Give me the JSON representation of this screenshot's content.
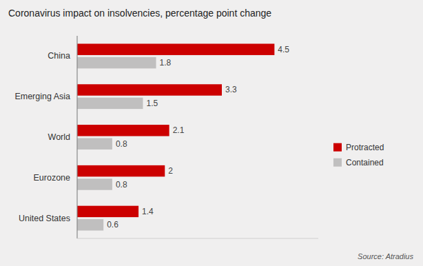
{
  "chart_data": {
    "type": "bar",
    "orientation": "horizontal",
    "title": "Coronavirus impact on insolvencies, percentage point change",
    "categories": [
      "United States",
      "Eurozone",
      "World",
      "Emerging Asia",
      "China"
    ],
    "series": [
      {
        "name": "Protracted",
        "color": "#cc0000",
        "values": [
          1.4,
          2.0,
          2.1,
          3.3,
          4.5
        ]
      },
      {
        "name": "Contained",
        "color": "#c0bfbf",
        "values": [
          0.6,
          0.8,
          0.8,
          1.5,
          1.8
        ]
      }
    ],
    "xlim": [
      0,
      5.5
    ],
    "data_labels": true,
    "tick_labels": "y",
    "grid": false,
    "legend": "right",
    "annotations": [
      "Source: Atradius"
    ]
  }
}
